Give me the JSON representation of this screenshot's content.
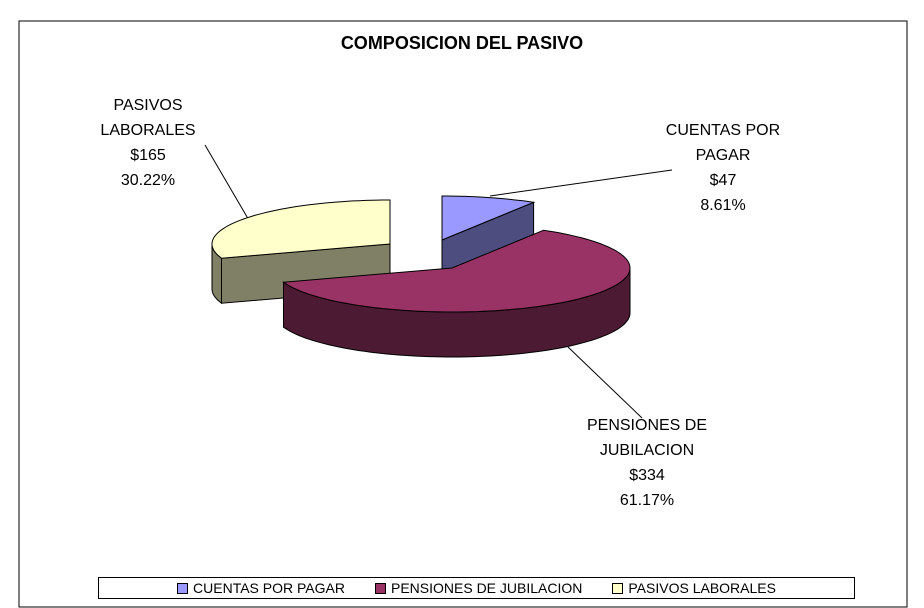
{
  "chart_data": {
    "type": "pie3d",
    "title": "COMPOSICION DEL PASIVO",
    "categories": [
      "CUENTAS POR PAGAR",
      "PENSIONES DE JUBILACION",
      "PASIVOS LABORALES"
    ],
    "values": [
      47,
      334,
      165
    ],
    "value_labels": [
      "$47",
      "$334",
      "$165"
    ],
    "percent_labels": [
      "8.61%",
      "61.17%",
      "30.22%"
    ],
    "colors": [
      "#9999ff",
      "#993366",
      "#ffffcc"
    ],
    "legend": "bottom"
  }
}
